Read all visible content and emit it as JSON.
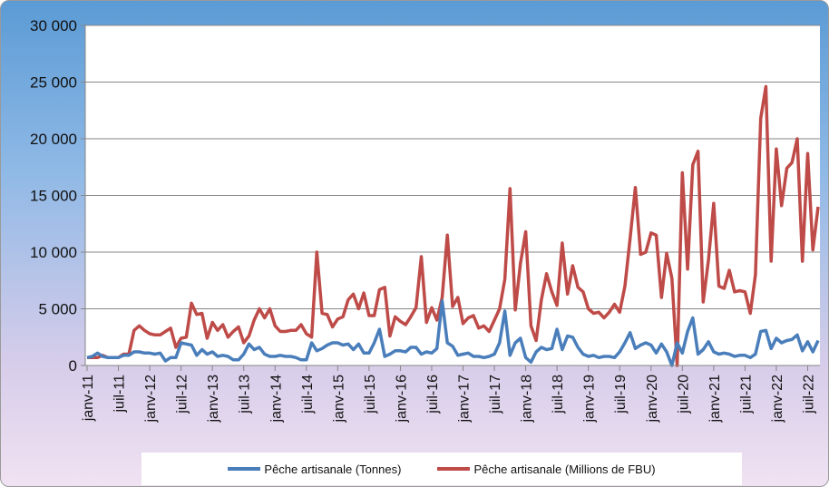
{
  "chart_data": {
    "type": "line",
    "ylim": [
      0,
      30000
    ],
    "yticks": [
      "0",
      "5 000",
      "10 000",
      "15 000",
      "20 000",
      "25 000",
      "30 000"
    ],
    "ytick_values": [
      0,
      5000,
      10000,
      15000,
      20000,
      25000,
      30000
    ],
    "xtick_labels": [
      "janv-11",
      "juil-11",
      "janv-12",
      "juil-12",
      "janv-13",
      "juil-13",
      "janv-14",
      "juil-14",
      "janv-15",
      "juil-15",
      "janv-16",
      "juil-16",
      "janv-17",
      "juil-17",
      "janv-18",
      "juil-18",
      "janv-19",
      "juil-19",
      "janv-20",
      "juil-20",
      "janv-21",
      "juil-21",
      "janv-22",
      "juil-22"
    ],
    "grid": "horizontal",
    "legend_position": "bottom",
    "series": [
      {
        "name": "Pêche artisanale  (Tonnes)",
        "color": "#4a7ebb",
        "values": [
          700,
          800,
          1100,
          800,
          700,
          700,
          700,
          900,
          900,
          1200,
          1200,
          1100,
          1100,
          1000,
          1100,
          400,
          700,
          700,
          2000,
          1900,
          1800,
          900,
          1400,
          1000,
          1200,
          800,
          900,
          800,
          500,
          500,
          1000,
          1900,
          1400,
          1600,
          1000,
          800,
          800,
          900,
          800,
          800,
          700,
          500,
          500,
          2000,
          1300,
          1500,
          1800,
          2000,
          2000,
          1800,
          1900,
          1400,
          1900,
          1100,
          1100,
          2000,
          3200,
          800,
          1000,
          1300,
          1300,
          1200,
          1600,
          1600,
          1000,
          1200,
          1100,
          1500,
          5700,
          2000,
          1700,
          900,
          1000,
          1100,
          800,
          800,
          700,
          800,
          1000,
          2000,
          4800,
          900,
          2000,
          2400,
          700,
          300,
          1200,
          1600,
          1400,
          1500,
          3200,
          1400,
          2600,
          2500,
          1600,
          1000,
          800,
          900,
          700,
          800,
          800,
          700,
          1200,
          2000,
          2900,
          1500,
          1800,
          2000,
          1800,
          1100,
          1900,
          1200,
          0,
          2000,
          1100,
          3000,
          4200,
          1000,
          1400,
          2100,
          1200,
          1000,
          1100,
          1000,
          800,
          900,
          900,
          700,
          1000,
          3000,
          3100,
          1500,
          2400,
          2000,
          2200,
          2300,
          2700,
          1300,
          2100,
          1200,
          2200
        ]
      },
      {
        "name": "Pêche artisanale  (Millions de FBU)",
        "color": "#be4b48",
        "values": [
          700,
          700,
          700,
          900,
          700,
          700,
          700,
          1000,
          1000,
          3100,
          3500,
          3100,
          2800,
          2700,
          2700,
          3000,
          3300,
          1600,
          2400,
          2500,
          5500,
          4500,
          4600,
          2400,
          3800,
          3100,
          3600,
          2500,
          3000,
          3400,
          2000,
          2600,
          4000,
          5000,
          4200,
          5000,
          3500,
          3000,
          3000,
          3100,
          3100,
          3600,
          2800,
          2500,
          10000,
          4600,
          4500,
          3400,
          4100,
          4300,
          5800,
          6300,
          5000,
          6400,
          4400,
          4400,
          6700,
          6900,
          2600,
          4300,
          3900,
          3600,
          4300,
          5100,
          9600,
          3800,
          5100,
          4000,
          6000,
          11500,
          5200,
          6000,
          3700,
          4200,
          4400,
          3300,
          3500,
          3000,
          4000,
          5000,
          7600,
          15600,
          4900,
          9000,
          11800,
          3500,
          2200,
          5800,
          8100,
          6500,
          5300,
          10800,
          6300,
          8800,
          6900,
          6500,
          5000,
          4600,
          4700,
          4200,
          4700,
          5400,
          4700,
          7000,
          11200,
          15700,
          9800,
          10000,
          11700,
          11500,
          6000,
          9900,
          7700,
          0,
          17000,
          8500,
          17700,
          18900,
          5600,
          9300,
          14300,
          7000,
          6800,
          8400,
          6500,
          6600,
          6500,
          4600,
          8000,
          21800,
          24600,
          9200,
          19100,
          14100,
          17400,
          17900,
          20000,
          9200,
          18700,
          10200,
          14000
        ]
      }
    ]
  }
}
